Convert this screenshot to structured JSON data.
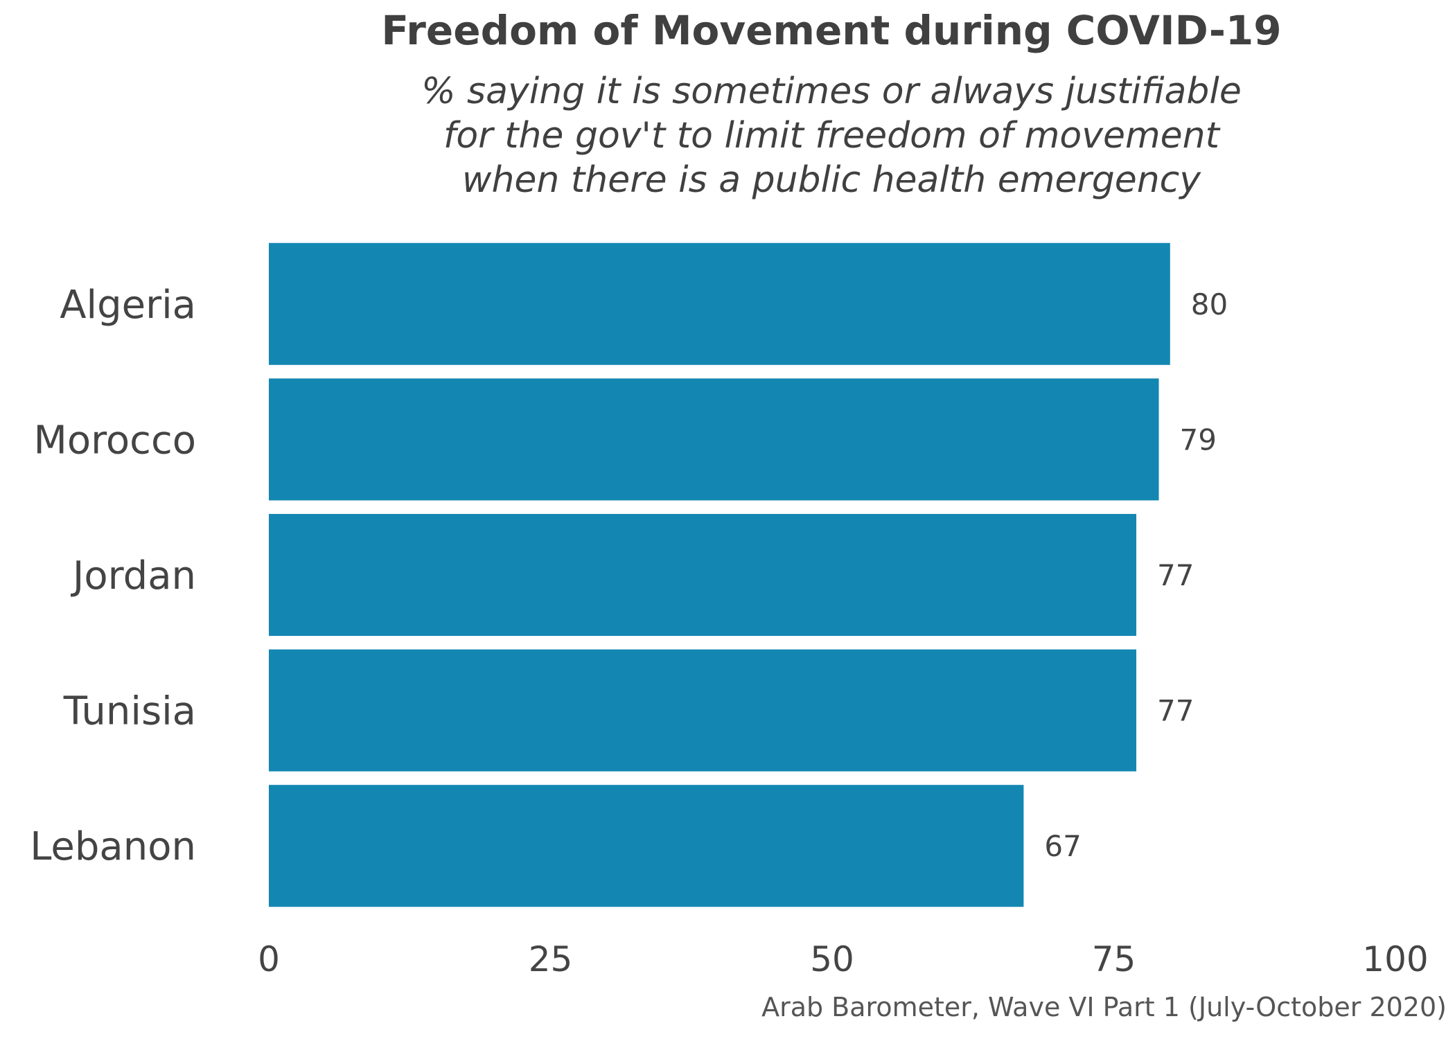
{
  "chart_data": {
    "type": "bar",
    "orientation": "horizontal",
    "title": "Freedom of Movement during COVID-19",
    "subtitle_lines": [
      "% saying it is sometimes or always justifiable",
      "for the gov't to limit freedom of movement",
      "when there is a public health emergency"
    ],
    "categories": [
      "Algeria",
      "Morocco",
      "Jordan",
      "Tunisia",
      "Lebanon"
    ],
    "values": [
      80,
      79,
      77,
      77,
      67
    ],
    "xlim": [
      0,
      100
    ],
    "xticks": [
      0,
      25,
      50,
      75,
      100
    ],
    "bar_color": "#1387b2",
    "grid": false,
    "legend": "none",
    "caption": "Arab Barometer, Wave VI Part 1 (July-October 2020)"
  }
}
